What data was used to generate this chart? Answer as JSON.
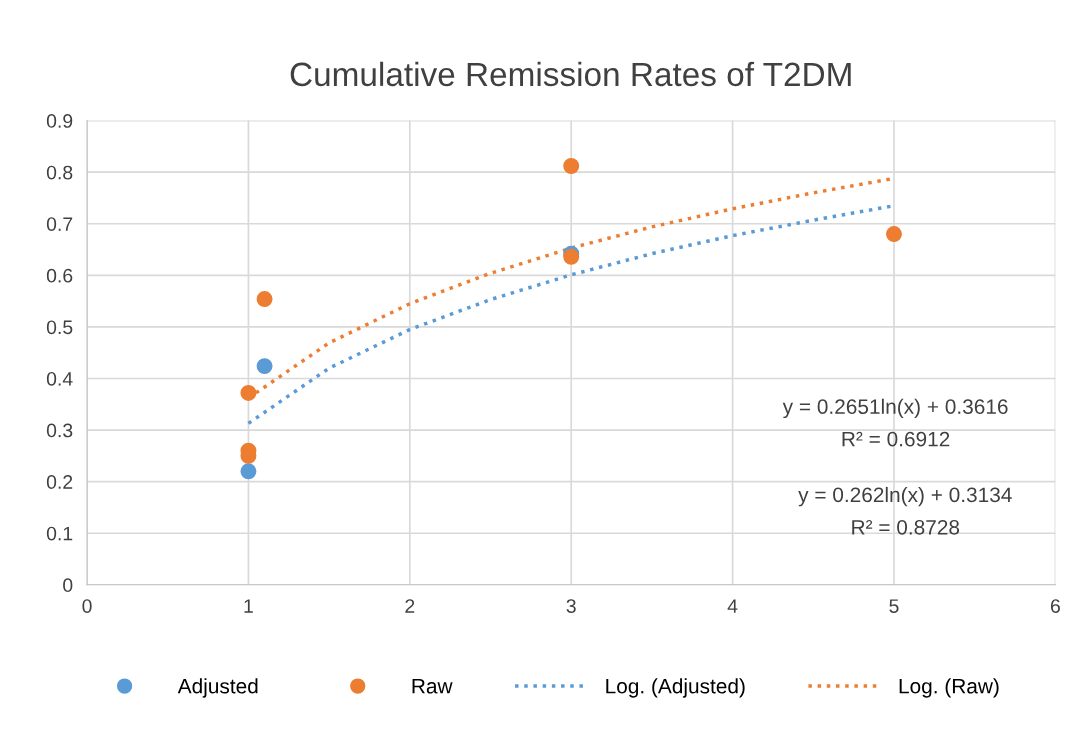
{
  "chart_data": {
    "type": "scatter",
    "title": "Cumulative Remission Rates of T2DM",
    "series": [
      {
        "name": "Adjusted",
        "marker": "circle",
        "color": "#5b9bd5",
        "x": [
          1,
          1.1,
          3
        ],
        "values": [
          0.22,
          0.424,
          0.642
        ]
      },
      {
        "name": "Raw",
        "marker": "circle",
        "color": "#ed7d31",
        "x": [
          1,
          1,
          1,
          1.1,
          3,
          3,
          5
        ],
        "values": [
          0.372,
          0.26,
          0.25,
          0.554,
          0.812,
          0.636,
          0.68
        ]
      },
      {
        "name": "Log. (Adjusted)",
        "type": "line",
        "line_style": "dotted",
        "color": "#5b9bd5",
        "x": [
          1,
          1.5,
          2,
          2.5,
          3,
          3.5,
          4,
          4.5,
          5
        ],
        "values": [
          0.313,
          0.42,
          0.495,
          0.553,
          0.601,
          0.642,
          0.677,
          0.707,
          0.735
        ]
      },
      {
        "name": "Log. (Raw)",
        "type": "line",
        "line_style": "dotted",
        "color": "#ed7d31",
        "x": [
          1,
          1.5,
          2,
          2.5,
          3,
          3.5,
          4,
          4.5,
          5
        ],
        "values": [
          0.362,
          0.469,
          0.545,
          0.604,
          0.653,
          0.694,
          0.729,
          0.76,
          0.788
        ]
      }
    ],
    "annotations": [
      "y = 0.2651ln(x) + 0.3616",
      "R² = 0.6912",
      "y = 0.262ln(x) + 0.3134",
      "R² = 0.8728"
    ],
    "xlim": [
      0,
      6
    ],
    "xticks": [
      0,
      1,
      2,
      3,
      4,
      5,
      6
    ],
    "ylim": [
      0,
      0.9
    ],
    "yticks": [
      0,
      0.1,
      0.2,
      0.3,
      0.4,
      0.5,
      0.6,
      0.7,
      0.8,
      0.9
    ],
    "grid": true,
    "legend": "bottom"
  }
}
